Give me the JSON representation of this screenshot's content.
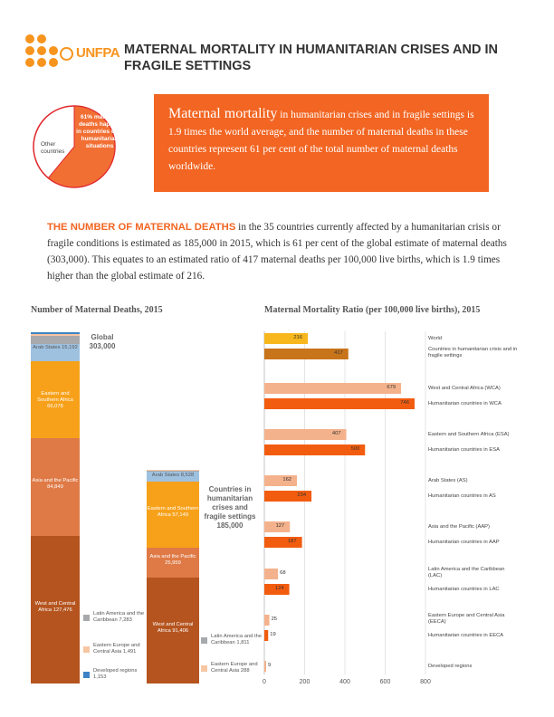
{
  "header": {
    "logo": "UNFPA",
    "title": "MATERNAL MORTALITY IN HUMANITARIAN CRISES AND IN FRAGILE SETTINGS"
  },
  "pie": {
    "big_label": "61% maternal deaths happen in countries with humanitarian situations",
    "other_label": "Other countries",
    "share": 61,
    "colors": {
      "main": "#f26f34",
      "other": "#ffffff",
      "edge": "#e0262c"
    }
  },
  "highlight": {
    "lead": "Maternal mortality",
    "text": " in humanitarian crises and in fragile settings is 1.9 times the world average, and the number of maternal deaths in these countries represent 61 per cent of the total number of maternal deaths worldwide."
  },
  "intro": {
    "lead": "THE NUMBER OF MATERNAL DEATHS",
    "text": " in the 35 countries currently affected by a humanitarian crisis or fragile conditions is estimated as 185,000 in 2015, which is 61 per cent of the global estimate of maternal deaths (303,000). This equates to an estimated ratio of 417 maternal deaths per 100,000 live births, which is 1.9 times higher than the global estimate of 216."
  },
  "chart_data": [
    {
      "type": "bar",
      "title": "Number of Maternal Deaths, 2015",
      "stacked": true,
      "bars": [
        {
          "name": "Global",
          "total_label": "Global 303,000",
          "total": 303000,
          "segments": [
            {
              "name": "West and Central Africa",
              "label": "West and Central Africa 127,476",
              "value": 127476,
              "color": "#b5541e"
            },
            {
              "name": "Asia and the Pacific",
              "label": "Asia and the Pacific 84,849",
              "value": 84849,
              "color": "#df7a46"
            },
            {
              "name": "Eastern and Southern Africa",
              "label": "Eastern and Southern Africa 66,078",
              "value": 66078,
              "color": "#f7a11a"
            },
            {
              "name": "Arab States",
              "label": "Arab States 15,192",
              "value": 15192,
              "color": "#9fc1e0"
            },
            {
              "name": "Latin America and the Caribbean",
              "label": "Latin America and the Caribbean 7,283",
              "value": 7283,
              "color": "#a7a9ac"
            },
            {
              "name": "Eastern Europe and Central Asia",
              "label": "Eastern Europe and Central Asia 1,491",
              "value": 1491,
              "color": "#f7c6a3"
            },
            {
              "name": "Developed regions",
              "label": "Developed regions 1,153",
              "value": 1153,
              "color": "#3d83c6"
            }
          ]
        },
        {
          "name": "Countries in humanitarian crises and fragile settings",
          "total_label": "Countries in humanitarian crises and fragile settings 185,000",
          "total": 185000,
          "segments": [
            {
              "name": "West and Central Africa",
              "label": "West and Central Africa 91,406",
              "value": 91406,
              "color": "#b5541e"
            },
            {
              "name": "Asia and the Pacific",
              "label": "Asia and the Pacific 25,959",
              "value": 25959,
              "color": "#df7a46"
            },
            {
              "name": "Eastern and Southern Africa",
              "label": "Eastern and Southern Africa 57,149",
              "value": 57149,
              "color": "#f7a11a"
            },
            {
              "name": "Arab States",
              "label": "Arab States 8,528",
              "value": 8528,
              "color": "#9fc1e0"
            },
            {
              "name": "Latin America and the Caribbean",
              "label": "Latin America and the Caribbean 1,811",
              "value": 1811,
              "color": "#a7a9ac"
            },
            {
              "name": "Eastern Europe and Central Asia",
              "label": "Eastern Europe and Central Asia 288",
              "value": 288,
              "color": "#f7c6a3"
            }
          ]
        }
      ]
    },
    {
      "type": "bar",
      "orientation": "horizontal",
      "title": "Maternal Mortality Ratio (per 100,000 live births), 2015",
      "xlim": [
        0,
        800
      ],
      "xticks": [
        "0",
        "200",
        "400",
        "600",
        "800"
      ],
      "grid": true,
      "bars": [
        {
          "category": "World",
          "value": 216,
          "label": "216",
          "color": "#f7b71d"
        },
        {
          "category": "Countries in humanitarian crisis and in fragile settings",
          "value": 417,
          "label": "417",
          "color": "#c8741b"
        },
        {
          "category": "West and Central Africa (WCA)",
          "value": 679,
          "label": "679",
          "color": "#f4b28c"
        },
        {
          "category": "Humanitarian countries in WCA",
          "value": 746,
          "label": "746",
          "color": "#f25c0f"
        },
        {
          "category": "Eastern and Southern Africa (ESA)",
          "value": 407,
          "label": "407",
          "color": "#f4b28c"
        },
        {
          "category": "Humanitarian countries in ESA",
          "value": 500,
          "label": "500",
          "color": "#f25c0f"
        },
        {
          "category": "Arab States (AS)",
          "value": 162,
          "label": "162",
          "color": "#f4b28c"
        },
        {
          "category": "Humanitarian countries in AS",
          "value": 234,
          "label": "234",
          "color": "#f25c0f"
        },
        {
          "category": "Asia and the Pacific (AAP)",
          "value": 127,
          "label": "127",
          "color": "#f4b28c"
        },
        {
          "category": "Humanitarian countries in AAP",
          "value": 187,
          "label": "187",
          "color": "#f25c0f"
        },
        {
          "category": "Latin America and the Caribbean (LAC)",
          "value": 68,
          "label": "68",
          "color": "#f4b28c"
        },
        {
          "category": "Humanitarian countries in LAC",
          "value": 124,
          "label": "124",
          "color": "#f25c0f"
        },
        {
          "category": "Eastern Europe and Central Asia (EECA)",
          "value": 25,
          "label": "25",
          "color": "#f4b28c"
        },
        {
          "category": "Humanitarian countries in EECA",
          "value": 19,
          "label": "19",
          "color": "#f25c0f"
        },
        {
          "category": "Developed regions",
          "value": 9,
          "label": "9",
          "color": "#f4b28c"
        }
      ]
    }
  ]
}
